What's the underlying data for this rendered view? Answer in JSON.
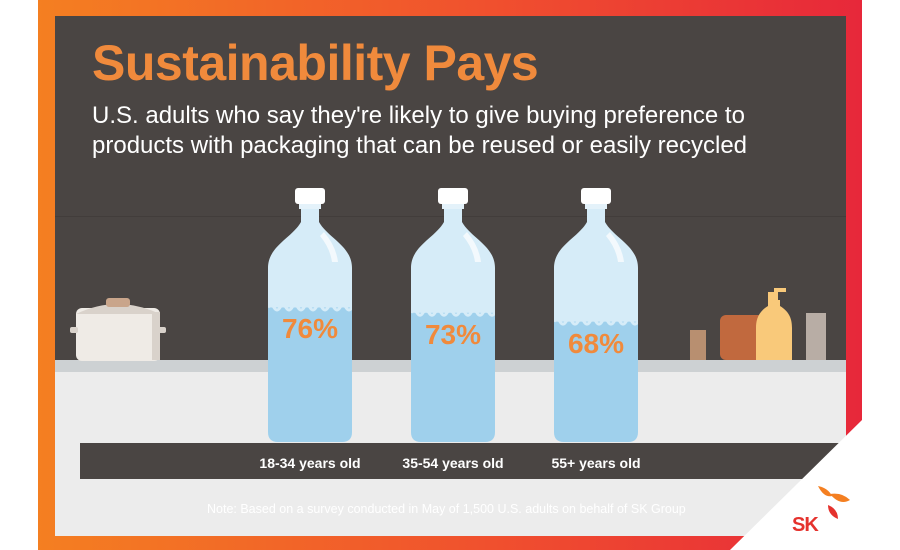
{
  "title": "Sustainability Pays",
  "subtitle": "U.S. adults who say they're likely to give buying preference to products with packaging that can be reused or easily recycled",
  "note": "Note: Based on a survey conducted in May of 1,500 U.S. adults on behalf of SK Group",
  "brand": "SK",
  "colors": {
    "accent": "#f08a3c",
    "frame_orange": "#f47f21",
    "frame_red": "#e7283a",
    "background": "#4a4543",
    "water": "#9fd0ec",
    "bottle": "#d6ecf8"
  },
  "chart_data": {
    "type": "bar",
    "categories": [
      "18-34 years old",
      "35-54 years old",
      "55+ years old"
    ],
    "values": [
      76,
      73,
      68
    ],
    "value_labels": [
      "76%",
      "73%",
      "68%"
    ],
    "unit": "%",
    "ylim": [
      0,
      100
    ],
    "title": "Sustainability Pays",
    "subtitle": "U.S. adults who say they're likely to give buying preference to products with packaging that can be reused or easily recycled"
  }
}
